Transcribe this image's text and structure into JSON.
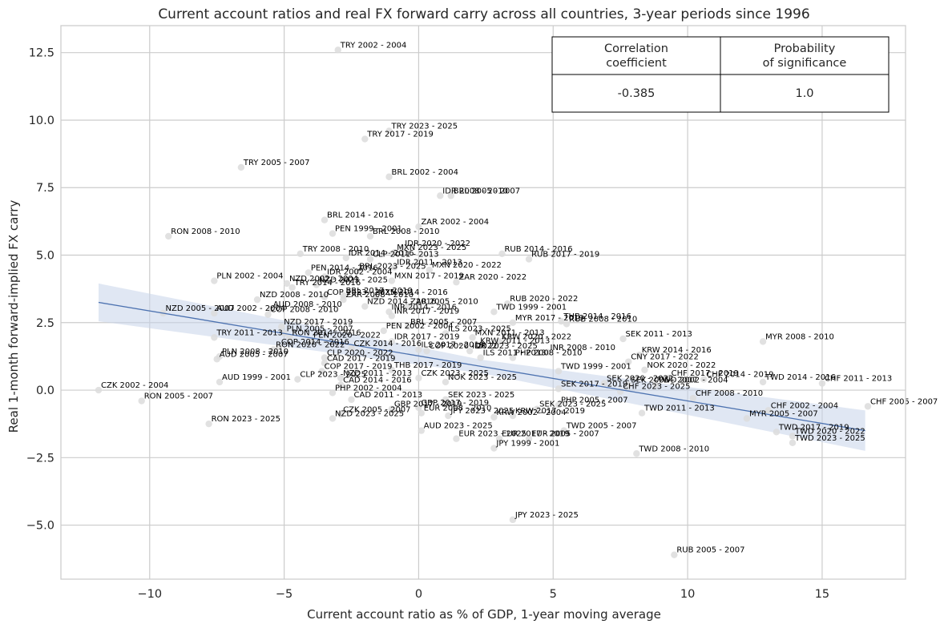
{
  "chart_data": {
    "type": "scatter",
    "title": "Current account ratios and real FX forward carry across all countries, 3-year periods since 1996",
    "xlabel": "Current account ratio as % of GDP, 1-year moving average",
    "ylabel": "Real 1-month forward-implied FX carry",
    "xlim": [
      -13.3,
      18.1
    ],
    "ylim": [
      -7.0,
      13.5
    ],
    "xticks": [
      -10,
      -5,
      0,
      5,
      10,
      15
    ],
    "xtick_labels": [
      "−10",
      "−5",
      "0",
      "5",
      "10",
      "15"
    ],
    "yticks": [
      -5.0,
      -2.5,
      0.0,
      2.5,
      5.0,
      7.5,
      10.0,
      12.5
    ],
    "ytick_labels": [
      "−5.0",
      "−2.5",
      "0.0",
      "2.5",
      "5.0",
      "7.5",
      "10.0",
      "12.5"
    ],
    "grid": true,
    "colors": {
      "points": "#dcdcdc",
      "line": "#4c72b0",
      "band": "#c6d3ea",
      "grid": "#cccccc",
      "axes": "#cccccc"
    },
    "regression": {
      "x": [
        -11.9,
        16.6
      ],
      "y": [
        3.25,
        -1.5
      ],
      "band_left": [
        2.55,
        3.95
      ],
      "band_right": [
        -2.25,
        -0.75
      ]
    },
    "table": {
      "headers": [
        "Correlation\ncoefficient",
        "Probability\nof significance"
      ],
      "values": [
        "-0.385",
        "1.0"
      ]
    },
    "points": [
      {
        "x": -3.0,
        "y": 12.6,
        "label": "TRY 2002 - 2004"
      },
      {
        "x": -1.1,
        "y": 9.6,
        "label": "TRY 2023 - 2025"
      },
      {
        "x": -2.0,
        "y": 9.3,
        "label": "TRY 2017 - 2019"
      },
      {
        "x": -6.6,
        "y": 8.25,
        "label": "TRY 2005 - 2007"
      },
      {
        "x": -1.1,
        "y": 7.9,
        "label": "BRL 2002 - 2004"
      },
      {
        "x": 0.8,
        "y": 7.2,
        "label": "IDR 2008 - 2010"
      },
      {
        "x": 1.2,
        "y": 7.2,
        "label": "BRL 2005 - 2007"
      },
      {
        "x": -3.5,
        "y": 6.3,
        "label": "BRL 2014 - 2016"
      },
      {
        "x": 0.0,
        "y": 6.05,
        "label": "ZAR 2002 - 2004"
      },
      {
        "x": -9.3,
        "y": 5.7,
        "label": "RON 2008 - 2010"
      },
      {
        "x": -3.2,
        "y": 5.8,
        "label": "PEN 1999 - 2001"
      },
      {
        "x": -1.8,
        "y": 5.7,
        "label": "BRL 2008 - 2010"
      },
      {
        "x": -0.6,
        "y": 5.25,
        "label": "IDR 2020 - 2022"
      },
      {
        "x": -4.4,
        "y": 5.05,
        "label": "TRY 2008 - 2010"
      },
      {
        "x": 3.1,
        "y": 5.05,
        "label": "RUB 2014 - 2016"
      },
      {
        "x": -2.7,
        "y": 4.9,
        "label": "IDR 2014 - 2016"
      },
      {
        "x": -0.9,
        "y": 5.1,
        "label": "MXN 2023 - 2025"
      },
      {
        "x": -1.8,
        "y": 4.85,
        "label": "CLP 2011 - 2013"
      },
      {
        "x": 4.1,
        "y": 4.85,
        "label": "RUB 2017 - 2019"
      },
      {
        "x": -0.9,
        "y": 4.55,
        "label": "IDR 2011 - 2013"
      },
      {
        "x": -4.1,
        "y": 4.35,
        "label": "PEN 2014 - 2016"
      },
      {
        "x": 0.4,
        "y": 4.45,
        "label": "MXN 2020 - 2022"
      },
      {
        "x": -2.3,
        "y": 4.4,
        "label": "BRL 2023 - 2025"
      },
      {
        "x": -3.5,
        "y": 4.2,
        "label": "IDR 2002 - 2004"
      },
      {
        "x": -7.6,
        "y": 4.05,
        "label": "PLN 2002 - 2004"
      },
      {
        "x": -1.0,
        "y": 4.05,
        "label": "MXN 2017 - 2019"
      },
      {
        "x": 1.4,
        "y": 4.0,
        "label": "ZAR 2020 - 2022"
      },
      {
        "x": -4.9,
        "y": 3.95,
        "label": "NZD 2002 - 2004"
      },
      {
        "x": -3.8,
        "y": 3.9,
        "label": "NZD 2023 - 2025"
      },
      {
        "x": -4.7,
        "y": 3.8,
        "label": "TRY 2014 - 2016"
      },
      {
        "x": -2.8,
        "y": 3.5,
        "label": "BRL 2017 - 2019"
      },
      {
        "x": -1.6,
        "y": 3.45,
        "label": "MXN 2014 - 2016"
      },
      {
        "x": -6.0,
        "y": 3.35,
        "label": "NZD 2008 - 2010"
      },
      {
        "x": -3.5,
        "y": 3.45,
        "label": "COP 2023 - 2025"
      },
      {
        "x": -2.8,
        "y": 3.35,
        "label": "ZAR 2008 - 2010"
      },
      {
        "x": -2.0,
        "y": 3.1,
        "label": "NZD 2014 - 2016"
      },
      {
        "x": -0.4,
        "y": 3.1,
        "label": "ZAR 2005 - 2010"
      },
      {
        "x": 3.3,
        "y": 3.2,
        "label": "RUB 2020 - 2022"
      },
      {
        "x": -5.5,
        "y": 3.0,
        "label": "AUD 2008 - 2010"
      },
      {
        "x": -9.5,
        "y": 2.85,
        "label": "NZD 2005 - 2007"
      },
      {
        "x": -7.6,
        "y": 2.85,
        "label": "AUD 2002 - 2004"
      },
      {
        "x": 2.8,
        "y": 2.9,
        "label": "TWD 1999 - 2001"
      },
      {
        "x": -1.1,
        "y": 2.9,
        "label": "INR 2014 - 2016"
      },
      {
        "x": -1.0,
        "y": 2.75,
        "label": "INR 2017 - 2019"
      },
      {
        "x": -5.6,
        "y": 2.8,
        "label": "COP 2008 - 2010"
      },
      {
        "x": 5.3,
        "y": 2.55,
        "label": "THB 2014 - 2016"
      },
      {
        "x": 3.5,
        "y": 2.5,
        "label": "MYR 2017 - 2019"
      },
      {
        "x": 5.5,
        "y": 2.45,
        "label": "RUB 2008 - 2010"
      },
      {
        "x": -5.1,
        "y": 2.35,
        "label": "NZD 2017 - 2019"
      },
      {
        "x": -0.4,
        "y": 2.35,
        "label": "BRL 2005 - 2007"
      },
      {
        "x": -5.0,
        "y": 2.1,
        "label": "PLN 2005 - 2007"
      },
      {
        "x": -1.3,
        "y": 2.2,
        "label": "PEN 2002 - 2004"
      },
      {
        "x": 1.0,
        "y": 2.1,
        "label": "ILS 2023 - 2025"
      },
      {
        "x": -7.6,
        "y": 1.95,
        "label": "TRY 2011 - 2013"
      },
      {
        "x": -4.8,
        "y": 1.95,
        "label": "RON 2014 - 2016"
      },
      {
        "x": 2.0,
        "y": 1.95,
        "label": "MXN 2011 - 2013"
      },
      {
        "x": -4.0,
        "y": 1.85,
        "label": "PEN 2020 - 2022"
      },
      {
        "x": -1.0,
        "y": 1.8,
        "label": "IDR 2017 - 2019"
      },
      {
        "x": 7.6,
        "y": 1.9,
        "label": "SEK 2011 - 2013"
      },
      {
        "x": 3.0,
        "y": 1.8,
        "label": "KRW 2020 - 2022"
      },
      {
        "x": -5.2,
        "y": 1.6,
        "label": "COP 2014 - 2016"
      },
      {
        "x": -5.4,
        "y": 1.5,
        "label": "RON 2020 - 2022"
      },
      {
        "x": 2.2,
        "y": 1.65,
        "label": "KRW 2011 - 2013"
      },
      {
        "x": 12.8,
        "y": 1.8,
        "label": "MYR 2008 - 2010"
      },
      {
        "x": -2.5,
        "y": 1.55,
        "label": "CZK 2014 - 2016"
      },
      {
        "x": 0.0,
        "y": 1.5,
        "label": "ILS 2017 - 2019"
      },
      {
        "x": -7.4,
        "y": 1.25,
        "label": "PLN 2008 - 2010"
      },
      {
        "x": 0.3,
        "y": 1.45,
        "label": "COP 2020 - 2022"
      },
      {
        "x": 1.9,
        "y": 1.45,
        "label": "IDR 2023 - 2025"
      },
      {
        "x": 4.8,
        "y": 1.4,
        "label": "INR 2008 - 2010"
      },
      {
        "x": -7.5,
        "y": 1.15,
        "label": "AUD 2005 - 2007"
      },
      {
        "x": -3.5,
        "y": 1.2,
        "label": "CLP 2020 - 2022"
      },
      {
        "x": 2.3,
        "y": 1.2,
        "label": "ILS 2011 - 2013"
      },
      {
        "x": 3.5,
        "y": 1.2,
        "label": "PHP 2008 - 2010"
      },
      {
        "x": 8.2,
        "y": 1.3,
        "label": "KRW 2014 - 2016"
      },
      {
        "x": -3.5,
        "y": 1.0,
        "label": "CAD 2017 - 2019"
      },
      {
        "x": 7.8,
        "y": 1.05,
        "label": "CNY 2017 - 2022"
      },
      {
        "x": -3.6,
        "y": 0.7,
        "label": "COP 2017 - 2019"
      },
      {
        "x": -1.0,
        "y": 0.75,
        "label": "THB 2017 - 2019"
      },
      {
        "x": 5.2,
        "y": 0.7,
        "label": "TWD 1999 - 2001"
      },
      {
        "x": 8.4,
        "y": 0.75,
        "label": "NOK 2020 - 2022"
      },
      {
        "x": -7.4,
        "y": 0.3,
        "label": "AUD 1999 - 2001"
      },
      {
        "x": -4.5,
        "y": 0.4,
        "label": "CLP 2023 - 2025"
      },
      {
        "x": -2.9,
        "y": 0.45,
        "label": "NZD 2011 - 2013"
      },
      {
        "x": 0.0,
        "y": 0.45,
        "label": "CZK 2023 - 2025"
      },
      {
        "x": 1.0,
        "y": 0.3,
        "label": "NOK 2023 - 2025"
      },
      {
        "x": 9.3,
        "y": 0.45,
        "label": "CHF 2017 - 2019"
      },
      {
        "x": 10.6,
        "y": 0.4,
        "label": "CHF 2014 - 2019"
      },
      {
        "x": -11.9,
        "y": 0.0,
        "label": "CZK 2002 - 2004"
      },
      {
        "x": -2.9,
        "y": 0.2,
        "label": "CAD 2014 - 2016"
      },
      {
        "x": 12.8,
        "y": 0.3,
        "label": "TWD 2014 - 2016"
      },
      {
        "x": 15.0,
        "y": 0.25,
        "label": "CHF 2011 - 2013"
      },
      {
        "x": 6.9,
        "y": 0.25,
        "label": "SEK 2020 - 2022"
      },
      {
        "x": 7.8,
        "y": 0.2,
        "label": "SEK 2005 - 2007"
      },
      {
        "x": 8.8,
        "y": 0.2,
        "label": "TWD 2002 - 2004"
      },
      {
        "x": -3.2,
        "y": -0.1,
        "label": "PHP 2002 - 2004"
      },
      {
        "x": 5.2,
        "y": 0.05,
        "label": "SEK 2017 - 2019"
      },
      {
        "x": 7.5,
        "y": -0.05,
        "label": "CHF 2023 - 2025"
      },
      {
        "x": -10.3,
        "y": -0.4,
        "label": "RON 2005 - 2007"
      },
      {
        "x": -2.5,
        "y": -0.35,
        "label": "CAD 2011 - 2013"
      },
      {
        "x": 1.0,
        "y": -0.35,
        "label": "SEK 2023 - 2025"
      },
      {
        "x": 10.2,
        "y": -0.3,
        "label": "CHF 2008 - 2010"
      },
      {
        "x": -1.0,
        "y": -0.7,
        "label": "GBP 2017 - 2019"
      },
      {
        "x": 0.0,
        "y": -0.65,
        "label": "GBP 2017 - 2019"
      },
      {
        "x": 5.2,
        "y": -0.55,
        "label": "PHP 2005 - 2007"
      },
      {
        "x": 4.4,
        "y": -0.7,
        "label": "SEK 2023 - 2025"
      },
      {
        "x": 13.0,
        "y": -0.75,
        "label": "CHF 2002 - 2004"
      },
      {
        "x": 16.7,
        "y": -0.6,
        "label": "CHF 2005 - 2007"
      },
      {
        "x": -3.2,
        "y": -1.05,
        "label": "NZD 2023 - 2025"
      },
      {
        "x": -2.9,
        "y": -0.9,
        "label": "CZK 2005 - 2007"
      },
      {
        "x": 0.1,
        "y": -0.85,
        "label": "EUR 2008 - 2010"
      },
      {
        "x": 1.1,
        "y": -0.95,
        "label": "JPY 2023 - 2025"
      },
      {
        "x": 2.8,
        "y": -1.0,
        "label": "KRW 2002 - 2004"
      },
      {
        "x": 3.5,
        "y": -0.95,
        "label": "KRW 2017 - 2019"
      },
      {
        "x": 8.3,
        "y": -0.85,
        "label": "TWD 2011 - 2013"
      },
      {
        "x": 12.2,
        "y": -1.05,
        "label": "MYR 2005 - 2007"
      },
      {
        "x": -7.8,
        "y": -1.25,
        "label": "RON 2023 - 2025"
      },
      {
        "x": 0.1,
        "y": -1.5,
        "label": "AUD 2023 - 2025"
      },
      {
        "x": 5.4,
        "y": -1.5,
        "label": "TWD 2005 - 2007"
      },
      {
        "x": 13.3,
        "y": -1.55,
        "label": "TWD 2017 - 2019"
      },
      {
        "x": 13.9,
        "y": -1.7,
        "label": "TWD 2020 - 2022"
      },
      {
        "x": 1.4,
        "y": -1.8,
        "label": "EUR 2023 - 2025"
      },
      {
        "x": 3.0,
        "y": -1.8,
        "label": "EUR 2017 - 2019"
      },
      {
        "x": 4.1,
        "y": -1.8,
        "label": "EUR 2005 - 2007"
      },
      {
        "x": 13.9,
        "y": -1.95,
        "label": "TWD 2023 - 2025"
      },
      {
        "x": 2.8,
        "y": -2.15,
        "label": "JPY 1999 - 2001"
      },
      {
        "x": 8.1,
        "y": -2.35,
        "label": "TWD 2008 - 2010"
      },
      {
        "x": 3.5,
        "y": -4.8,
        "label": "JPY 2023 - 2025"
      },
      {
        "x": 9.5,
        "y": -6.1,
        "label": "RUB 2005 - 2007"
      }
    ]
  }
}
